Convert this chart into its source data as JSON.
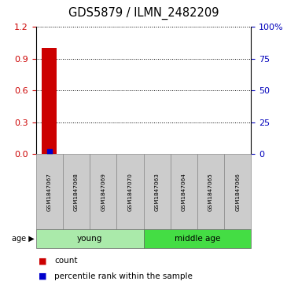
{
  "title": "GDS5879 / ILMN_2482209",
  "samples": [
    "GSM1847067",
    "GSM1847068",
    "GSM1847069",
    "GSM1847070",
    "GSM1847063",
    "GSM1847064",
    "GSM1847065",
    "GSM1847066"
  ],
  "red_bar_values": [
    1.0,
    0,
    0,
    0,
    0,
    0,
    0,
    0
  ],
  "blue_dot_values": [
    2.0,
    0,
    0,
    0,
    0,
    0,
    0,
    0
  ],
  "left_ylim": [
    0,
    1.2
  ],
  "left_yticks": [
    0,
    0.3,
    0.6,
    0.9,
    1.2
  ],
  "right_ylim": [
    0,
    100
  ],
  "right_yticks": [
    0,
    25,
    50,
    75,
    100
  ],
  "right_yticklabels": [
    "0",
    "25",
    "50",
    "75",
    "100%"
  ],
  "groups": [
    {
      "label": "young",
      "start": 0,
      "end": 3,
      "color": "#AAEAAA"
    },
    {
      "label": "middle age",
      "start": 4,
      "end": 7,
      "color": "#44DD44"
    }
  ],
  "bar_color": "#CC0000",
  "dot_color": "#0000CC",
  "sample_box_color": "#CCCCCC",
  "sample_box_edge": "#888888",
  "bg_color": "#FFFFFF",
  "left_tick_color": "#CC0000",
  "right_tick_color": "#0000BB",
  "legend_count_label": "count",
  "legend_pct_label": "percentile rank within the sample",
  "age_label": "age ▶"
}
